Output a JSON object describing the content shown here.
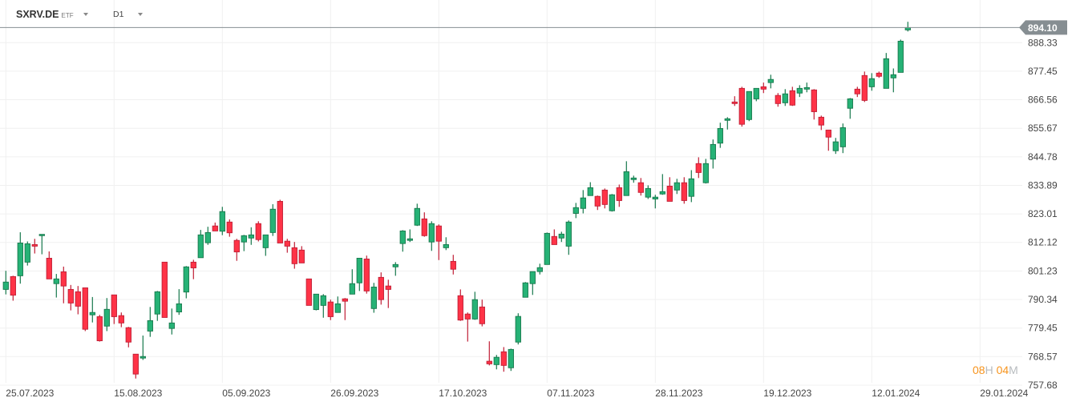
{
  "header": {
    "symbol": "SXRV.DE",
    "instrument_type": "ETF",
    "timeframe": "D1"
  },
  "countdown": {
    "hours": "08",
    "hours_unit": "H",
    "minutes": "04",
    "minutes_unit": "M"
  },
  "colors": {
    "up": "#26b276",
    "up_border": "#17784c",
    "down": "#ff3347",
    "down_border": "#c01e35",
    "price_line": "#868e92",
    "countdown": "#f7941d"
  },
  "chart_data": {
    "type": "candlestick",
    "title": "",
    "grid": true,
    "current_price": "894.10",
    "y_ticks": [
      "888.33",
      "877.45",
      "866.56",
      "855.67",
      "844.78",
      "833.89",
      "823.01",
      "812.12",
      "801.23",
      "790.34",
      "779.45",
      "768.57",
      "757.68"
    ],
    "x_ticks": [
      {
        "label": "25.07.2023",
        "bar": 0
      },
      {
        "label": "15.08.2023",
        "bar": 15
      },
      {
        "label": "05.09.2023",
        "bar": 30
      },
      {
        "label": "26.09.2023",
        "bar": 45
      },
      {
        "label": "17.10.2023",
        "bar": 60
      },
      {
        "label": "07.11.2023",
        "bar": 75
      },
      {
        "label": "28.11.2023",
        "bar": 90
      },
      {
        "label": "19.12.2023",
        "bar": 105
      },
      {
        "label": "12.01.2024",
        "bar": 120
      },
      {
        "label": "29.01.2024",
        "bar": 135
      }
    ],
    "ohlc_fields": [
      "open",
      "high",
      "low",
      "close"
    ],
    "ohlc": [
      [
        794.2,
        801.3,
        792.3,
        797.0
      ],
      [
        799.1,
        799.4,
        789.9,
        792.0
      ],
      [
        799.4,
        816.0,
        796.4,
        811.9
      ],
      [
        804.6,
        812.5,
        803.3,
        811.6
      ],
      [
        811.3,
        813.5,
        807.9,
        810.7
      ],
      [
        814.7,
        815.2,
        807.6,
        815.2
      ],
      [
        806.1,
        808.7,
        798.2,
        798.2
      ],
      [
        796.4,
        800.1,
        791.1,
        798.2
      ],
      [
        800.9,
        802.9,
        788.9,
        795.5
      ],
      [
        794.2,
        795.9,
        786.2,
        789.0
      ],
      [
        793.3,
        795.5,
        784.7,
        787.8
      ],
      [
        794.8,
        794.8,
        778.3,
        779.0
      ],
      [
        784.5,
        791.3,
        781.6,
        785.4
      ],
      [
        783.8,
        784.5,
        774.3,
        774.6
      ],
      [
        780.2,
        790.9,
        778.3,
        786.6
      ],
      [
        792.1,
        792.1,
        781.0,
        783.8
      ],
      [
        784.2,
        785.4,
        779.8,
        781.4
      ],
      [
        779.6,
        779.9,
        772.1,
        774.1
      ],
      [
        769.5,
        769.5,
        760.2,
        761.9
      ],
      [
        768.0,
        776.6,
        767.3,
        768.6
      ],
      [
        778.3,
        787.5,
        776.1,
        782.3
      ],
      [
        784.8,
        793.6,
        782.2,
        793.3
      ],
      [
        804.6,
        804.6,
        783.5,
        783.5
      ],
      [
        779.3,
        786.9,
        777.0,
        781.4
      ],
      [
        785.6,
        794.3,
        784.5,
        788.7
      ],
      [
        793.2,
        803.1,
        790.8,
        802.8
      ],
      [
        804.6,
        805.5,
        798.1,
        802.4
      ],
      [
        806.3,
        816.9,
        806.3,
        815.0
      ],
      [
        812.0,
        818.1,
        811.2,
        815.9
      ],
      [
        818.4,
        819.7,
        816.5,
        816.5
      ],
      [
        816.4,
        825.7,
        814.9,
        823.9
      ],
      [
        819.9,
        820.9,
        814.3,
        815.8
      ],
      [
        812.9,
        813.5,
        805.1,
        808.5
      ],
      [
        812.3,
        815.0,
        808.8,
        814.7
      ],
      [
        813.8,
        817.9,
        811.2,
        815.0
      ],
      [
        819.3,
        820.2,
        812.5,
        813.2
      ],
      [
        810.1,
        815.0,
        807.0,
        815.0
      ],
      [
        815.9,
        826.7,
        814.6,
        824.8
      ],
      [
        827.8,
        828.4,
        811.9,
        811.9
      ],
      [
        812.6,
        813.5,
        808.2,
        810.7
      ],
      [
        810.1,
        812.3,
        802.1,
        804.0
      ],
      [
        809.2,
        810.7,
        804.3,
        804.3
      ],
      [
        798.2,
        798.2,
        788.1,
        788.1
      ],
      [
        786.5,
        792.4,
        786.2,
        792.4
      ],
      [
        788.1,
        792.4,
        783.4,
        791.8
      ],
      [
        789.4,
        790.3,
        782.5,
        783.8
      ],
      [
        785.4,
        791.5,
        785.4,
        788.7
      ],
      [
        790.6,
        790.9,
        782.5,
        789.7
      ],
      [
        792.4,
        801.9,
        792.4,
        796.4
      ],
      [
        796.7,
        806.1,
        793.6,
        806.1
      ],
      [
        805.8,
        807.1,
        792.6,
        793.6
      ],
      [
        786.9,
        796.7,
        785.3,
        795.1
      ],
      [
        798.8,
        800.7,
        788.4,
        790.3
      ],
      [
        795.5,
        797.9,
        787.1,
        794.2
      ],
      [
        802.8,
        804.6,
        799.4,
        803.7
      ],
      [
        811.7,
        816.8,
        808.6,
        816.5
      ],
      [
        812.9,
        817.1,
        812.3,
        813.5
      ],
      [
        818.7,
        826.9,
        818.4,
        825.1
      ],
      [
        821.1,
        823.6,
        814.3,
        814.7
      ],
      [
        812.3,
        820.2,
        808.9,
        819.3
      ],
      [
        818.4,
        819.0,
        805.4,
        812.6
      ],
      [
        810.1,
        814.1,
        809.2,
        811.3
      ],
      [
        804.9,
        807.4,
        799.9,
        801.9
      ],
      [
        791.8,
        794.2,
        782.2,
        782.5
      ],
      [
        784.8,
        785.4,
        774.3,
        782.9
      ],
      [
        782.9,
        793.3,
        782.6,
        790.3
      ],
      [
        787.5,
        790.3,
        780.1,
        781.1
      ],
      [
        766.8,
        774.4,
        765.2,
        765.8
      ],
      [
        765.5,
        769.2,
        763.7,
        768.3
      ],
      [
        770.4,
        772.2,
        762.8,
        765.2
      ],
      [
        764.3,
        771.6,
        763.1,
        771.3
      ],
      [
        774.1,
        785.1,
        773.2,
        783.9
      ],
      [
        791.2,
        797.0,
        791.2,
        796.7
      ],
      [
        796.4,
        801.0,
        792.1,
        801.0
      ],
      [
        801.0,
        804.0,
        799.9,
        802.5
      ],
      [
        803.7,
        815.9,
        803.7,
        815.6
      ],
      [
        814.4,
        817.1,
        811.3,
        811.3
      ],
      [
        813.8,
        816.2,
        812.3,
        815.3
      ],
      [
        810.7,
        820.5,
        807.4,
        819.9
      ],
      [
        823.2,
        827.2,
        821.4,
        825.4
      ],
      [
        825.1,
        832.1,
        823.2,
        829.1
      ],
      [
        830.0,
        835.1,
        830.0,
        833.0
      ],
      [
        829.7,
        830.0,
        824.5,
        826.0
      ],
      [
        832.1,
        832.7,
        825.1,
        826.6
      ],
      [
        824.2,
        830.6,
        823.9,
        830.3
      ],
      [
        833.0,
        834.2,
        825.7,
        828.1
      ],
      [
        830.0,
        843.1,
        830.0,
        839.1
      ],
      [
        836.1,
        837.6,
        834.9,
        836.7
      ],
      [
        834.9,
        836.7,
        830.0,
        831.2
      ],
      [
        829.4,
        833.9,
        828.7,
        832.7
      ],
      [
        828.7,
        830.3,
        825.1,
        829.4
      ],
      [
        830.6,
        838.2,
        830.3,
        831.5
      ],
      [
        833.6,
        837.0,
        827.8,
        827.8
      ],
      [
        832.1,
        836.4,
        830.6,
        834.9
      ],
      [
        834.9,
        837.0,
        826.9,
        828.1
      ],
      [
        829.7,
        839.7,
        827.5,
        836.4
      ],
      [
        842.2,
        844.6,
        836.7,
        838.8
      ],
      [
        834.9,
        844.0,
        834.6,
        842.2
      ],
      [
        843.9,
        851.4,
        840.3,
        849.5
      ],
      [
        850.0,
        857.8,
        848.2,
        855.6
      ],
      [
        858.7,
        859.9,
        855.2,
        859.3
      ],
      [
        865.7,
        867.9,
        864.2,
        865.1
      ],
      [
        870.9,
        871.5,
        856.3,
        857.2
      ],
      [
        859.0,
        869.7,
        858.4,
        869.7
      ],
      [
        866.9,
        870.9,
        866.0,
        870.9
      ],
      [
        871.5,
        873.1,
        869.1,
        870.6
      ],
      [
        873.1,
        876.1,
        870.9,
        874.3
      ],
      [
        868.2,
        869.1,
        863.9,
        865.1
      ],
      [
        865.4,
        870.6,
        864.2,
        868.8
      ],
      [
        870.0,
        871.5,
        864.2,
        864.5
      ],
      [
        869.1,
        872.1,
        867.6,
        870.9
      ],
      [
        870.6,
        873.1,
        869.4,
        871.2
      ],
      [
        870.3,
        870.6,
        859.0,
        862.0
      ],
      [
        859.9,
        860.5,
        855.0,
        856.9
      ],
      [
        855.0,
        855.0,
        847.1,
        852.3
      ],
      [
        847.1,
        852.0,
        845.9,
        850.5
      ],
      [
        848.6,
        857.5,
        846.2,
        855.9
      ],
      [
        863.3,
        867.2,
        859.3,
        866.9
      ],
      [
        870.6,
        871.5,
        867.6,
        868.8
      ],
      [
        875.8,
        877.3,
        865.7,
        866.3
      ],
      [
        871.5,
        876.7,
        870.0,
        874.6
      ],
      [
        876.7,
        877.3,
        874.9,
        875.5
      ],
      [
        870.9,
        884.4,
        870.9,
        882.2
      ],
      [
        874.9,
        878.5,
        869.4,
        876.1
      ],
      [
        877.0,
        889.5,
        877.0,
        888.9
      ],
      [
        893.2,
        896.3,
        892.6,
        894.1
      ]
    ]
  }
}
